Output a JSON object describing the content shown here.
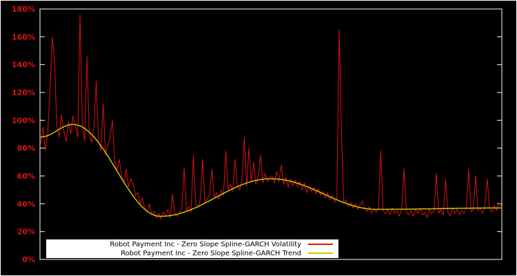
{
  "chart_data": {
    "type": "line",
    "title": "",
    "xlabel": "",
    "ylabel": "",
    "ylim": [
      0,
      180
    ],
    "yticks": [
      0,
      20,
      40,
      60,
      80,
      100,
      120,
      140,
      160,
      180
    ],
    "ytick_suffix": "%",
    "grid": false,
    "legend_position": "bottom-center",
    "colors": {
      "background": "#000000",
      "plot_border": "#ffffff",
      "tick_label": "#dd1111",
      "volatility_line": "#dd1111",
      "trend_line": "#c8c800",
      "legend_background": "#ffffff",
      "legend_text": "#000000"
    },
    "series": [
      {
        "name": "Robot Payment Inc - Zero Slope Spline-GARCH Volatility",
        "color": "#dd1111",
        "style": "noisy",
        "values": [
          83,
          95,
          78,
          90,
          120,
          160,
          142,
          96,
          88,
          104,
          92,
          85,
          99,
          90,
          103,
          95,
          88,
          176,
          98,
          85,
          146,
          90,
          84,
          95,
          128,
          86,
          78,
          112,
          75,
          82,
          88,
          100,
          70,
          64,
          72,
          60,
          55,
          65,
          52,
          58,
          54,
          46,
          48,
          40,
          44,
          36,
          34,
          40,
          32,
          35,
          30,
          33,
          29,
          34,
          31,
          36,
          30,
          47,
          32,
          31,
          34,
          37,
          66,
          35,
          38,
          34,
          75,
          40,
          37,
          43,
          72,
          40,
          44,
          46,
          65,
          44,
          48,
          43,
          50,
          46,
          78,
          50,
          54,
          49,
          72,
          53,
          50,
          57,
          88,
          52,
          80,
          56,
          70,
          54,
          60,
          75,
          55,
          62,
          56,
          59,
          60,
          55,
          63,
          56,
          68,
          54,
          59,
          52,
          58,
          53,
          57,
          52,
          56,
          50,
          55,
          48,
          53,
          49,
          52,
          47,
          51,
          46,
          49,
          44,
          48,
          43,
          46,
          41,
          44,
          165,
          90,
          40,
          43,
          38,
          41,
          37,
          40,
          36,
          39,
          42,
          37,
          34,
          38,
          33,
          36,
          34,
          37,
          78,
          35,
          33,
          36,
          32,
          37,
          33,
          35,
          31,
          36,
          65,
          34,
          32,
          35,
          31,
          36,
          33,
          37,
          32,
          34,
          30,
          36,
          33,
          35,
          62,
          33,
          36,
          32,
          58,
          34,
          31,
          37,
          33,
          36,
          32,
          35,
          33,
          38,
          65,
          34,
          36,
          60,
          35,
          37,
          33,
          38,
          58,
          36,
          34,
          39,
          35,
          41,
          38
        ]
      },
      {
        "name": "Robot Payment Inc - Zero Slope Spline-GARCH Trend",
        "color": "#c8c800",
        "style": "smooth-zero-slope-spline",
        "control_points": [
          [
            0,
            88
          ],
          [
            0.07,
            97
          ],
          [
            0.26,
            31
          ],
          [
            0.5,
            58
          ],
          [
            0.73,
            36
          ],
          [
            1,
            37
          ]
        ]
      }
    ]
  }
}
